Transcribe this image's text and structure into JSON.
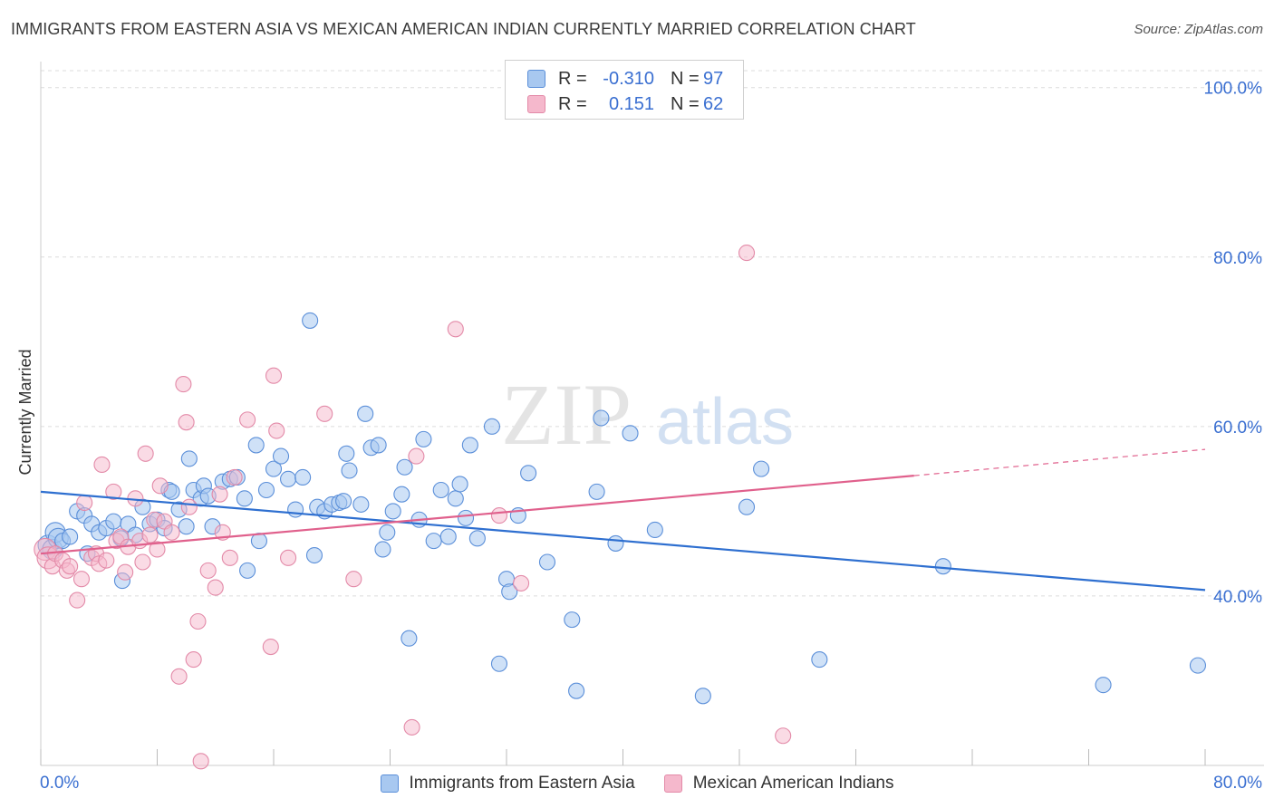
{
  "title": "IMMIGRANTS FROM EASTERN ASIA VS MEXICAN AMERICAN INDIAN CURRENTLY MARRIED CORRELATION CHART",
  "source": "Source: ZipAtlas.com",
  "watermark": {
    "zip": "ZIP",
    "atlas": "atlas"
  },
  "legend_top": {
    "rows": [
      {
        "r_label": "R =",
        "r_value": "-0.310",
        "n_label": "N =",
        "n_value": "97"
      },
      {
        "r_label": "R =",
        "r_value": "0.151",
        "n_label": "N =",
        "n_value": "62"
      }
    ]
  },
  "legend_bottom": {
    "items": [
      {
        "label": "Immigrants from Eastern Asia"
      },
      {
        "label": "Mexican American Indians"
      }
    ]
  },
  "colors": {
    "blue_fill": "#a8c8f0",
    "blue_stroke": "#5b8fd9",
    "blue_line": "#2e6fd0",
    "pink_fill": "#f5b8cc",
    "pink_stroke": "#e38aa8",
    "pink_line": "#e0608c",
    "axis_text": "#3a6fd1",
    "grid": "#dcdcdc"
  },
  "chart_data": {
    "type": "scatter",
    "title": "IMMIGRANTS FROM EASTERN ASIA VS MEXICAN AMERICAN INDIAN CURRENTLY MARRIED CORRELATION CHART",
    "xlabel": "",
    "ylabel": "Currently Married",
    "x_tick_labels": [
      "0.0%",
      "80.0%"
    ],
    "y_tick_labels": [
      "40.0%",
      "60.0%",
      "80.0%",
      "100.0%"
    ],
    "xlim": [
      0,
      80
    ],
    "ylim": [
      20,
      102
    ],
    "grid": true,
    "legend_position": "top-center",
    "series": [
      {
        "name": "Immigrants from Eastern Asia",
        "color": "#a8c8f0",
        "trend": {
          "x": [
            0,
            80
          ],
          "y": [
            52.3,
            40.7
          ]
        },
        "points": [
          [
            0.5,
            46.0
          ],
          [
            0.8,
            45.5
          ],
          [
            1.0,
            47.5
          ],
          [
            1.2,
            46.8
          ],
          [
            1.5,
            46.5
          ],
          [
            2.0,
            47.0
          ],
          [
            2.5,
            50.0
          ],
          [
            3.0,
            49.5
          ],
          [
            3.2,
            45.0
          ],
          [
            3.5,
            48.5
          ],
          [
            4.0,
            47.5
          ],
          [
            4.5,
            48.0
          ],
          [
            5.0,
            48.8
          ],
          [
            5.5,
            46.8
          ],
          [
            5.6,
            41.8
          ],
          [
            6.0,
            48.5
          ],
          [
            6.5,
            47.2
          ],
          [
            7.0,
            50.5
          ],
          [
            7.5,
            48.5
          ],
          [
            8.0,
            49.0
          ],
          [
            8.5,
            48.0
          ],
          [
            8.8,
            52.5
          ],
          [
            9.0,
            52.3
          ],
          [
            9.5,
            50.2
          ],
          [
            10.0,
            48.2
          ],
          [
            10.2,
            56.2
          ],
          [
            10.5,
            52.5
          ],
          [
            11.0,
            51.5
          ],
          [
            11.2,
            53.0
          ],
          [
            11.5,
            51.8
          ],
          [
            11.8,
            48.2
          ],
          [
            12.5,
            53.5
          ],
          [
            13.0,
            53.8
          ],
          [
            13.5,
            54.0
          ],
          [
            14.0,
            51.5
          ],
          [
            14.2,
            43.0
          ],
          [
            14.8,
            57.8
          ],
          [
            15.0,
            46.5
          ],
          [
            15.5,
            52.5
          ],
          [
            16.0,
            55.0
          ],
          [
            16.5,
            56.5
          ],
          [
            17.0,
            53.8
          ],
          [
            17.5,
            50.2
          ],
          [
            18.0,
            54.0
          ],
          [
            18.5,
            72.5
          ],
          [
            18.8,
            44.8
          ],
          [
            19.0,
            50.5
          ],
          [
            19.5,
            50.0
          ],
          [
            20.0,
            50.8
          ],
          [
            20.5,
            51.0
          ],
          [
            20.8,
            51.2
          ],
          [
            21.0,
            56.8
          ],
          [
            21.2,
            54.8
          ],
          [
            22.0,
            50.8
          ],
          [
            22.3,
            61.5
          ],
          [
            22.7,
            57.5
          ],
          [
            23.2,
            57.8
          ],
          [
            23.5,
            45.5
          ],
          [
            23.8,
            47.5
          ],
          [
            24.2,
            50.0
          ],
          [
            24.8,
            52.0
          ],
          [
            25.0,
            55.2
          ],
          [
            25.3,
            35.0
          ],
          [
            26.0,
            49.0
          ],
          [
            26.3,
            58.5
          ],
          [
            27.0,
            46.5
          ],
          [
            27.5,
            52.5
          ],
          [
            28.0,
            47.0
          ],
          [
            28.5,
            51.5
          ],
          [
            28.8,
            53.2
          ],
          [
            29.2,
            49.2
          ],
          [
            29.5,
            57.8
          ],
          [
            30.0,
            46.8
          ],
          [
            31.0,
            60.0
          ],
          [
            31.5,
            32.0
          ],
          [
            32.0,
            42.0
          ],
          [
            32.2,
            40.5
          ],
          [
            32.8,
            49.5
          ],
          [
            33.5,
            54.5
          ],
          [
            34.8,
            44.0
          ],
          [
            36.5,
            37.2
          ],
          [
            36.8,
            28.8
          ],
          [
            38.2,
            52.3
          ],
          [
            38.5,
            61.0
          ],
          [
            39.5,
            46.2
          ],
          [
            40.5,
            59.2
          ],
          [
            42.2,
            47.8
          ],
          [
            45.5,
            28.2
          ],
          [
            48.5,
            50.5
          ],
          [
            49.5,
            55.0
          ],
          [
            53.5,
            32.5
          ],
          [
            62.0,
            43.5
          ],
          [
            73.0,
            29.5
          ],
          [
            79.5,
            31.8
          ]
        ]
      },
      {
        "name": "Mexican American Indians",
        "color": "#f5b8cc",
        "trend": {
          "x": [
            0,
            60
          ],
          "y": [
            45.0,
            54.2
          ],
          "dashed_x": [
            60,
            80
          ],
          "dashed_y": [
            54.2,
            57.3
          ]
        },
        "points": [
          [
            0.3,
            45.5
          ],
          [
            0.5,
            44.5
          ],
          [
            0.8,
            43.5
          ],
          [
            1.0,
            45.0
          ],
          [
            1.5,
            44.2
          ],
          [
            1.8,
            43.0
          ],
          [
            2.0,
            43.5
          ],
          [
            2.5,
            39.5
          ],
          [
            2.8,
            42.0
          ],
          [
            3.0,
            51.0
          ],
          [
            3.5,
            44.5
          ],
          [
            3.8,
            45.0
          ],
          [
            4.0,
            43.8
          ],
          [
            4.2,
            55.5
          ],
          [
            4.5,
            44.2
          ],
          [
            5.0,
            52.3
          ],
          [
            5.2,
            46.5
          ],
          [
            5.5,
            47.0
          ],
          [
            5.8,
            42.8
          ],
          [
            6.0,
            45.8
          ],
          [
            6.5,
            51.5
          ],
          [
            6.8,
            46.5
          ],
          [
            7.0,
            44.0
          ],
          [
            7.2,
            56.8
          ],
          [
            7.5,
            47.2
          ],
          [
            7.8,
            49.0
          ],
          [
            8.0,
            45.5
          ],
          [
            8.2,
            53.0
          ],
          [
            8.5,
            48.8
          ],
          [
            9.0,
            47.5
          ],
          [
            9.5,
            30.5
          ],
          [
            9.8,
            65.0
          ],
          [
            10.0,
            60.5
          ],
          [
            10.2,
            50.5
          ],
          [
            10.5,
            32.5
          ],
          [
            10.8,
            37.0
          ],
          [
            11.0,
            20.5
          ],
          [
            11.5,
            43.0
          ],
          [
            12.0,
            41.0
          ],
          [
            12.3,
            52.0
          ],
          [
            12.5,
            47.5
          ],
          [
            13.0,
            44.5
          ],
          [
            13.3,
            54.0
          ],
          [
            14.2,
            60.8
          ],
          [
            15.8,
            34.0
          ],
          [
            16.0,
            66.0
          ],
          [
            16.2,
            59.5
          ],
          [
            17.0,
            44.5
          ],
          [
            19.5,
            61.5
          ],
          [
            21.5,
            42.0
          ],
          [
            25.5,
            24.5
          ],
          [
            25.8,
            56.5
          ],
          [
            28.5,
            71.5
          ],
          [
            31.5,
            49.5
          ],
          [
            33.0,
            41.5
          ],
          [
            48.5,
            80.5
          ],
          [
            51.0,
            23.5
          ]
        ]
      }
    ]
  }
}
